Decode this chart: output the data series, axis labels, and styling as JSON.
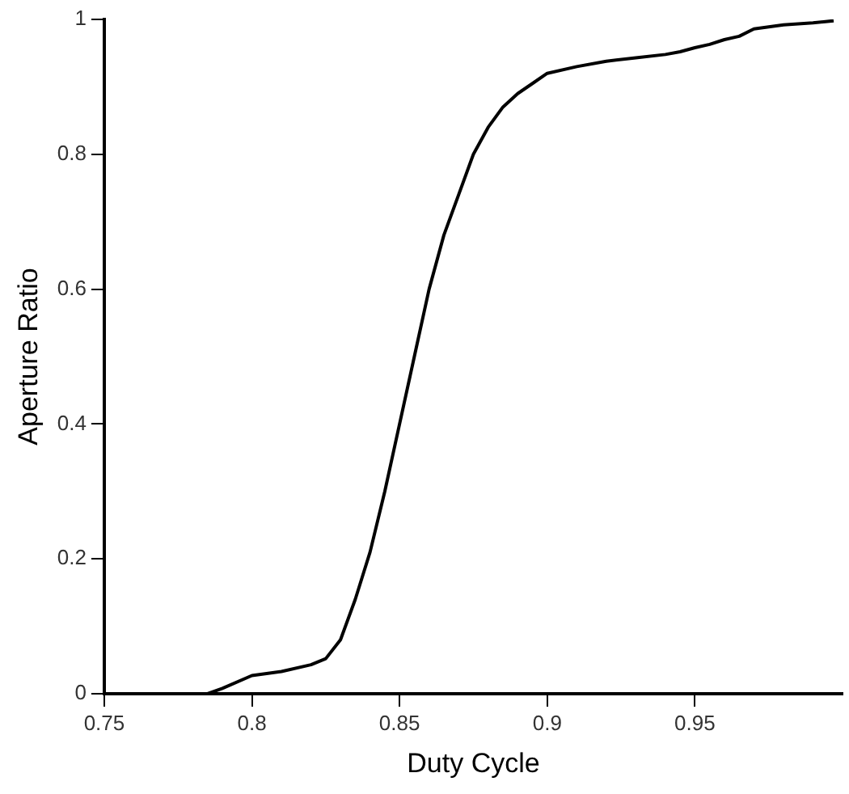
{
  "chart_data": {
    "type": "line",
    "xlabel": "Duty Cycle",
    "ylabel": "Aperture Ratio",
    "xlim": [
      0.75,
      1.0
    ],
    "ylim": [
      0,
      1
    ],
    "xticks": [
      0.75,
      0.8,
      0.85,
      0.9,
      0.95
    ],
    "yticks": [
      0,
      0.2,
      0.4,
      0.6,
      0.8,
      1
    ],
    "grid": false,
    "legend": false,
    "marker": "none",
    "line_style": "solid",
    "series": [
      {
        "color": "#000000",
        "x": [
          0.785,
          0.79,
          0.8,
          0.81,
          0.82,
          0.825,
          0.83,
          0.835,
          0.84,
          0.845,
          0.85,
          0.855,
          0.86,
          0.865,
          0.87,
          0.875,
          0.88,
          0.885,
          0.89,
          0.895,
          0.9,
          0.91,
          0.92,
          0.93,
          0.94,
          0.945,
          0.95,
          0.955,
          0.96,
          0.965,
          0.97,
          0.98,
          0.99,
          0.997
        ],
        "values": [
          0,
          0.008,
          0.027,
          0.033,
          0.043,
          0.052,
          0.08,
          0.14,
          0.21,
          0.3,
          0.4,
          0.5,
          0.6,
          0.68,
          0.74,
          0.8,
          0.84,
          0.87,
          0.89,
          0.905,
          0.92,
          0.93,
          0.938,
          0.943,
          0.948,
          0.952,
          0.958,
          0.963,
          0.97,
          0.975,
          0.986,
          0.992,
          0.995,
          0.998
        ]
      }
    ]
  }
}
